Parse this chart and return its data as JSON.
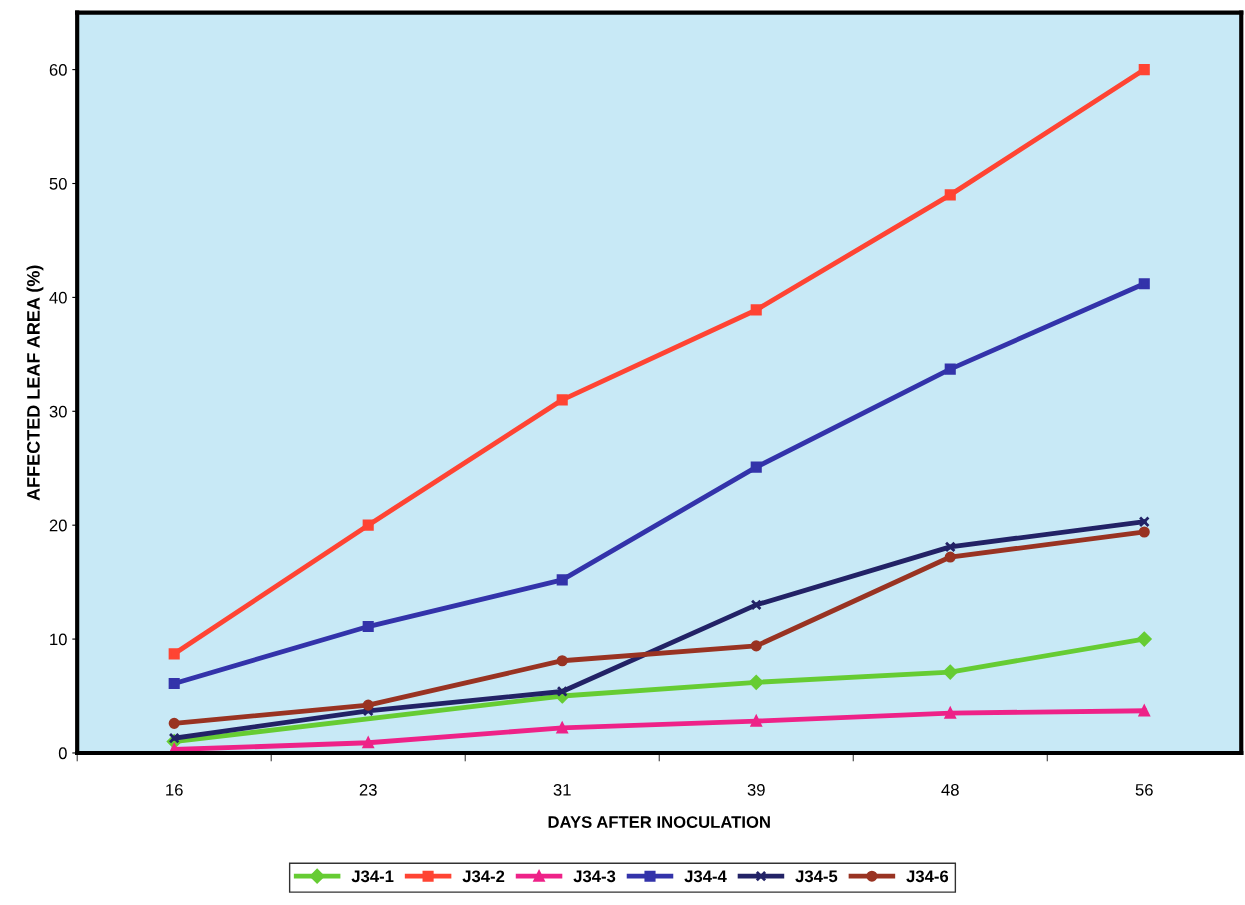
{
  "chart_data": {
    "type": "line",
    "xlabel": "DAYS AFTER INOCULATION",
    "ylabel": "AFFECTED LEAF AREA (%)",
    "categories": [
      "16",
      "23",
      "31",
      "39",
      "48",
      "56"
    ],
    "ylim": [
      0,
      65
    ],
    "yticks": [
      0,
      10,
      20,
      30,
      40,
      50,
      60
    ],
    "grid": false,
    "legend": "bottom",
    "line_style": "solid",
    "series": [
      {
        "name": "J34-1",
        "color": "#66cc33",
        "marker": "diamond",
        "values": [
          1.0,
          null,
          5.0,
          6.2,
          7.1,
          10.0
        ]
      },
      {
        "name": "J34-2",
        "color": "#ff4433",
        "marker": "square",
        "values": [
          8.7,
          20.0,
          31.0,
          38.9,
          49.0,
          60.0
        ]
      },
      {
        "name": "J34-3",
        "color": "#ee2288",
        "marker": "triangle",
        "values": [
          0.3,
          0.9,
          2.2,
          2.8,
          3.5,
          3.7
        ]
      },
      {
        "name": "J34-4",
        "color": "#3333aa",
        "marker": "square",
        "values": [
          6.1,
          11.1,
          15.2,
          25.1,
          33.7,
          41.2
        ]
      },
      {
        "name": "J34-5",
        "color": "#222266",
        "marker": "cross",
        "values": [
          1.3,
          3.7,
          5.4,
          13.0,
          18.1,
          20.3
        ]
      },
      {
        "name": "J34-6",
        "color": "#993322",
        "marker": "circle",
        "values": [
          2.6,
          4.2,
          8.1,
          9.4,
          17.2,
          19.4
        ]
      }
    ]
  }
}
